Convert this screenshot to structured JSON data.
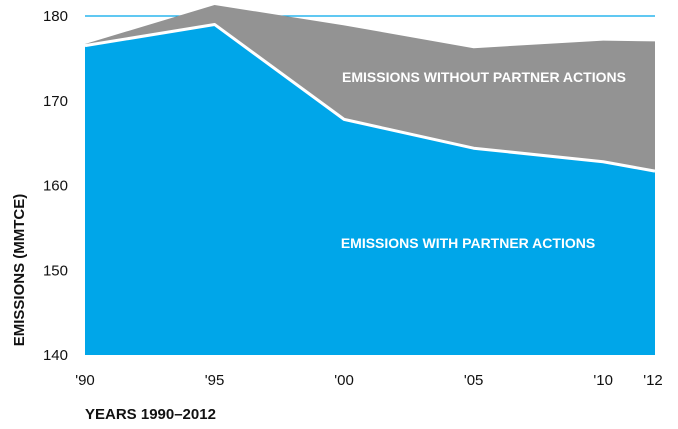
{
  "chart_data": {
    "type": "area",
    "title": "",
    "xlabel": "YEARS 1990–2012",
    "ylabel": "EMISSIONS (MMTCE)",
    "x": [
      1990,
      1995,
      2000,
      2005,
      2010,
      2012
    ],
    "x_tick_labels": [
      "'90",
      "'95",
      "'00",
      "'05",
      "'10",
      "'12"
    ],
    "y_ticks": [
      140,
      150,
      160,
      170,
      180
    ],
    "ylim": [
      140,
      180
    ],
    "grid": false,
    "series": [
      {
        "name": "EMISSIONS WITHOUT PARTNER ACTIONS",
        "values": [
          176.7,
          181.3,
          178.9,
          176.2,
          177.1,
          177.0
        ],
        "color": "#939393"
      },
      {
        "name": "EMISSIONS WITH PARTNER ACTIONS",
        "values": [
          176.5,
          179.0,
          167.8,
          164.4,
          162.8,
          161.7
        ],
        "color": "#00a6e9"
      }
    ],
    "reference_line": {
      "value": 180,
      "color": "#00a6e9"
    },
    "separator_color": "#ffffff"
  }
}
